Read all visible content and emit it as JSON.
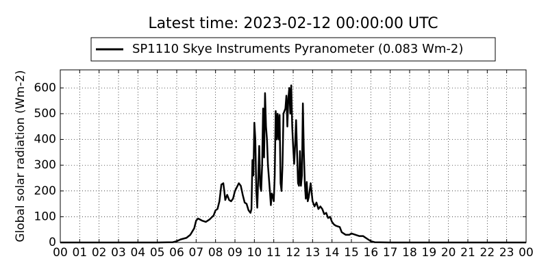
{
  "chart_data": {
    "type": "line",
    "title": "Latest time: 2023-02-12 00:00:00 UTC",
    "y_label": "Global solar radiation (Wm-2)",
    "legend": "top-center",
    "grid": true,
    "xlim": [
      0,
      24
    ],
    "xticks": [
      {
        "value": 0,
        "label": "00"
      },
      {
        "value": 1,
        "label": "01"
      },
      {
        "value": 2,
        "label": "02"
      },
      {
        "value": 3,
        "label": "03"
      },
      {
        "value": 4,
        "label": "04"
      },
      {
        "value": 5,
        "label": "05"
      },
      {
        "value": 6,
        "label": "06"
      },
      {
        "value": 7,
        "label": "07"
      },
      {
        "value": 8,
        "label": "08"
      },
      {
        "value": 9,
        "label": "09"
      },
      10,
      11,
      12,
      13,
      14,
      15,
      16,
      17,
      18,
      19,
      20,
      21,
      22,
      23,
      {
        "value": 24,
        "label": "00"
      }
    ],
    "ylim": [
      0,
      670
    ],
    "yticks": [
      0,
      100,
      200,
      300,
      400,
      500,
      600
    ],
    "x": [
      0,
      5,
      5.8,
      6.0,
      6.2,
      6.5,
      6.7,
      6.9,
      7.0,
      7.1,
      7.3,
      7.5,
      7.7,
      7.9,
      8.0,
      8.1,
      8.2,
      8.3,
      8.4,
      8.45,
      8.5,
      8.6,
      8.7,
      8.8,
      8.9,
      9.0,
      9.1,
      9.2,
      9.3,
      9.4,
      9.5,
      9.6,
      9.7,
      9.8,
      9.85,
      9.9,
      9.95,
      10.0,
      10.05,
      10.1,
      10.15,
      10.2,
      10.25,
      10.3,
      10.35,
      10.4,
      10.45,
      10.5,
      10.55,
      10.6,
      10.65,
      10.7,
      10.8,
      10.85,
      10.9,
      10.95,
      11.0,
      11.05,
      11.1,
      11.15,
      11.2,
      11.25,
      11.3,
      11.35,
      11.4,
      11.45,
      11.5,
      11.55,
      11.6,
      11.65,
      11.7,
      11.75,
      11.8,
      11.85,
      11.9,
      11.95,
      12.0,
      12.05,
      12.1,
      12.15,
      12.2,
      12.25,
      12.3,
      12.35,
      12.4,
      12.45,
      12.5,
      12.55,
      12.6,
      12.65,
      12.7,
      12.75,
      12.8,
      12.9,
      13.0,
      13.1,
      13.2,
      13.3,
      13.4,
      13.5,
      13.6,
      13.7,
      13.8,
      13.9,
      14.0,
      14.1,
      14.2,
      14.4,
      14.5,
      14.7,
      14.9,
      15.0,
      15.2,
      15.4,
      15.6,
      15.8,
      16.0,
      16.2,
      17,
      24
    ],
    "series": [
      {
        "name": "SP1110 Skye Instruments Pyranometer (0.083 Wm-2)",
        "color": "#000000",
        "values": [
          0,
          0,
          1,
          5,
          12,
          18,
          30,
          55,
          85,
          93,
          85,
          80,
          90,
          105,
          125,
          130,
          160,
          225,
          230,
          200,
          165,
          185,
          165,
          160,
          170,
          200,
          215,
          230,
          220,
          185,
          155,
          150,
          125,
          115,
          130,
          320,
          260,
          465,
          400,
          200,
          135,
          250,
          375,
          220,
          200,
          300,
          520,
          330,
          580,
          450,
          400,
          300,
          200,
          145,
          190,
          180,
          160,
          260,
          510,
          400,
          500,
          400,
          495,
          230,
          200,
          300,
          500,
          510,
          520,
          570,
          450,
          560,
          600,
          500,
          610,
          450,
          370,
          305,
          380,
          475,
          350,
          230,
          220,
          355,
          220,
          260,
          540,
          350,
          230,
          170,
          235,
          160,
          175,
          230,
          160,
          140,
          155,
          130,
          140,
          130,
          110,
          115,
          95,
          100,
          80,
          70,
          65,
          60,
          40,
          30,
          30,
          35,
          30,
          25,
          25,
          15,
          5,
          1,
          0,
          0
        ]
      }
    ]
  }
}
